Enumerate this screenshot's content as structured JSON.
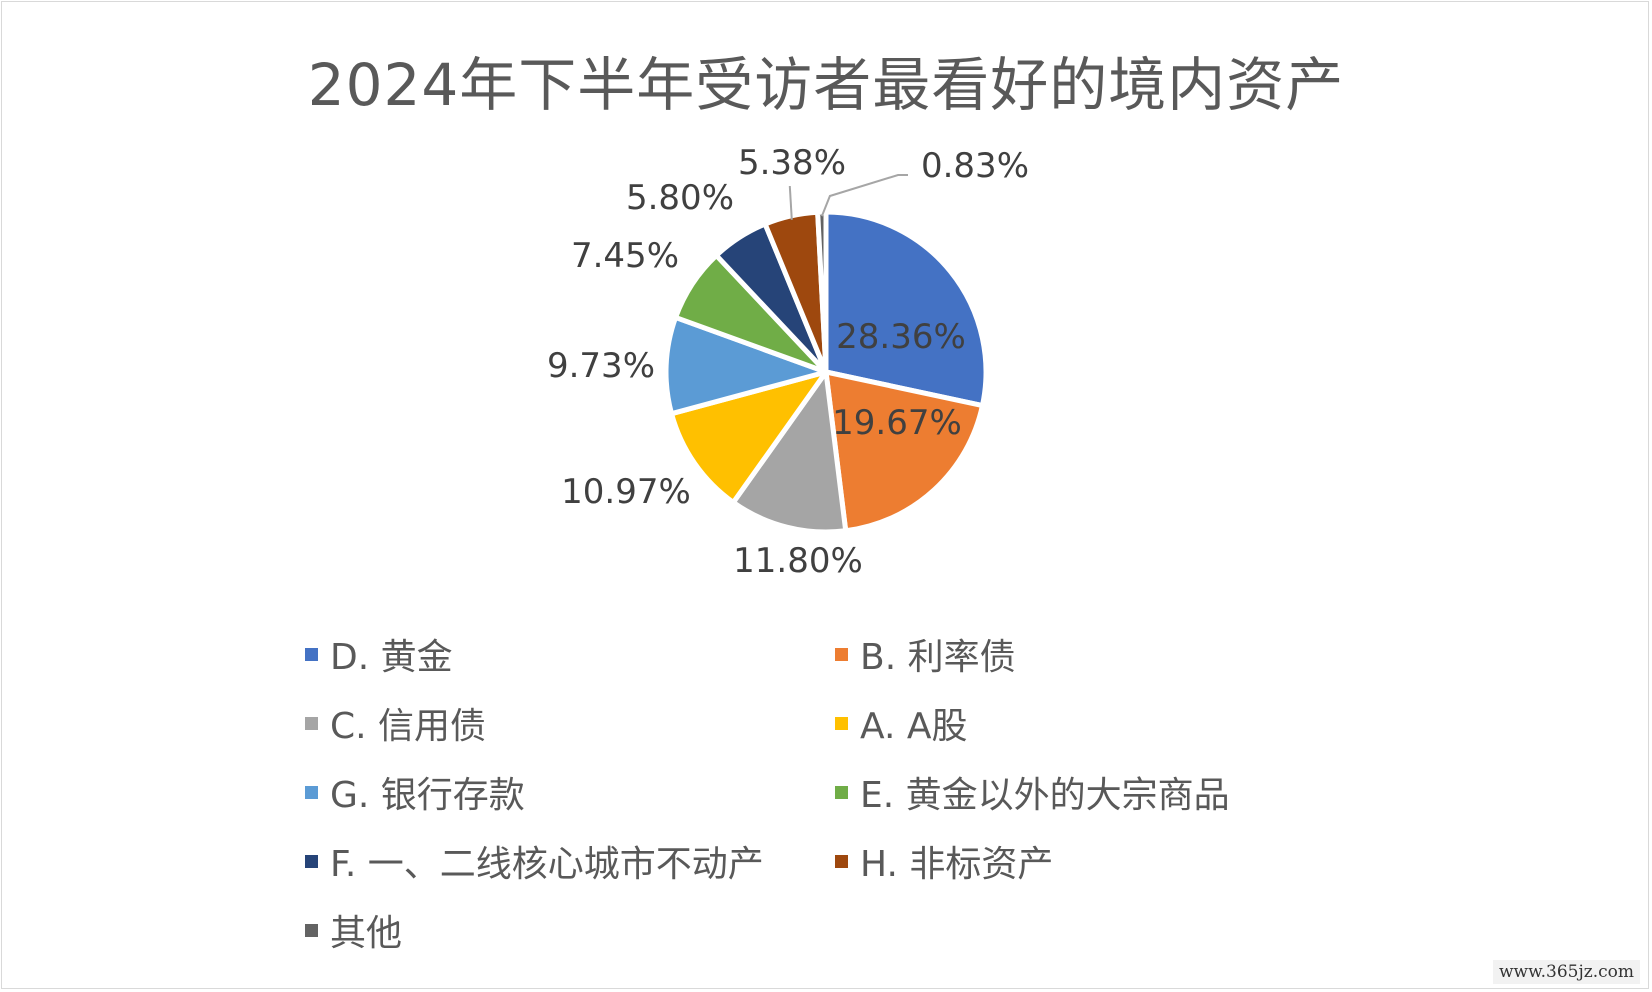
{
  "chart_data": {
    "type": "pie",
    "title": "2024年下半年受访者最看好的境内资产",
    "legend_position": "bottom",
    "slices": [
      {
        "category": "D. 黄金",
        "value": 28.36,
        "label": "28.36%",
        "color": "#4472C4"
      },
      {
        "category": "B. 利率债",
        "value": 19.67,
        "label": "19.67%",
        "color": "#ED7D31"
      },
      {
        "category": "C. 信用债",
        "value": 11.8,
        "label": "11.80%",
        "color": "#A5A5A5"
      },
      {
        "category": "A. A股",
        "value": 10.97,
        "label": "10.97%",
        "color": "#FFC000"
      },
      {
        "category": "G. 银行存款",
        "value": 9.73,
        "label": "9.73%",
        "color": "#5B9BD5"
      },
      {
        "category": "E. 黄金以外的大宗商品",
        "value": 7.45,
        "label": "7.45%",
        "color": "#70AD47"
      },
      {
        "category": "F. 一、二线核心城市不动产",
        "value": 5.8,
        "label": "5.80%",
        "color": "#264478"
      },
      {
        "category": "H. 非标资产",
        "value": 5.38,
        "label": "5.38%",
        "color": "#9E480E"
      },
      {
        "category": "其他",
        "value": 0.83,
        "label": "0.83%",
        "color": "#636363"
      }
    ]
  },
  "watermark": "www.365jz.com"
}
